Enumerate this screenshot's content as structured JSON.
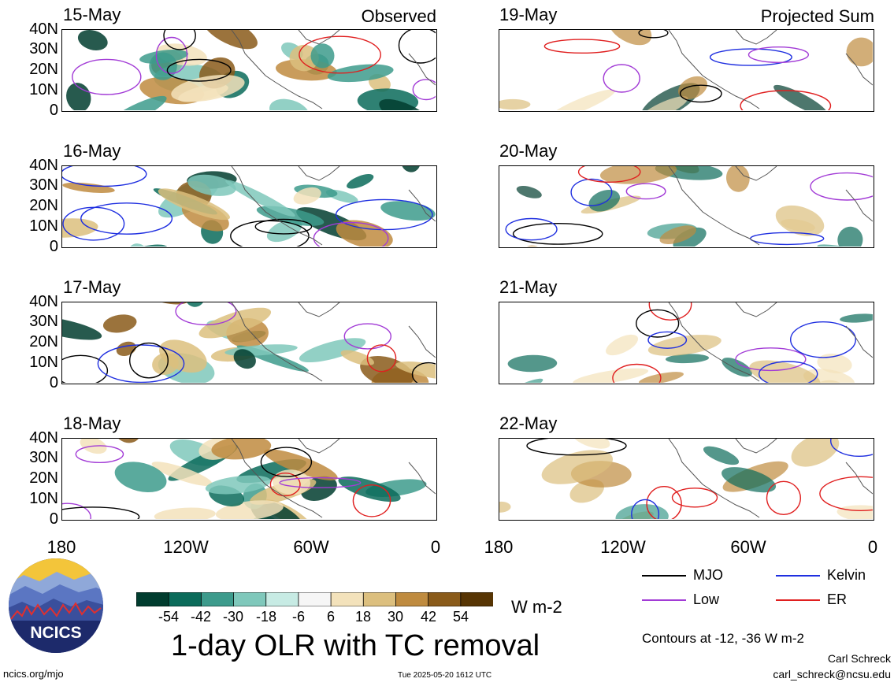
{
  "panels": {
    "observed": {
      "tag": "Observed",
      "dates": [
        "15-May",
        "16-May",
        "17-May",
        "18-May"
      ]
    },
    "projected": {
      "tag": "Projected Sum",
      "dates": [
        "19-May",
        "20-May",
        "21-May",
        "22-May"
      ]
    }
  },
  "axes": {
    "lat_labels": [
      "40N",
      "30N",
      "20N",
      "10N",
      "0"
    ],
    "lon_labels": [
      "180",
      "120W",
      "60W",
      "0"
    ]
  },
  "colorbar": {
    "labels": [
      "-54",
      "-42",
      "-30",
      "-18",
      "-6",
      "6",
      "18",
      "30",
      "42",
      "54"
    ],
    "colors": [
      "#013d2f",
      "#0b6b5a",
      "#3d9b8c",
      "#7fc8bb",
      "#c7ebe4",
      "#f6f6f6",
      "#f3e2bb",
      "#dcbf7e",
      "#bf8b3f",
      "#8a5b1a",
      "#573504"
    ],
    "unit": "W m-2"
  },
  "legend": {
    "items": [
      {
        "label": "MJO",
        "color": "#000000"
      },
      {
        "label": "Kelvin",
        "color": "#1f2fe0"
      },
      {
        "label": "Low",
        "color": "#a23bd6"
      },
      {
        "label": "ER",
        "color": "#e01f1f"
      }
    ],
    "contours_note": "Contours at -12, -36 W m-2"
  },
  "footer": {
    "title": "1-day OLR with TC removal",
    "site": "ncics.org/mjo",
    "timestamp": "Tue 2025-05-20 1612 UTC",
    "author": "Carl Schreck",
    "email": "carl_schreck@ncsu.edu",
    "logo_text": "NCICS"
  }
}
